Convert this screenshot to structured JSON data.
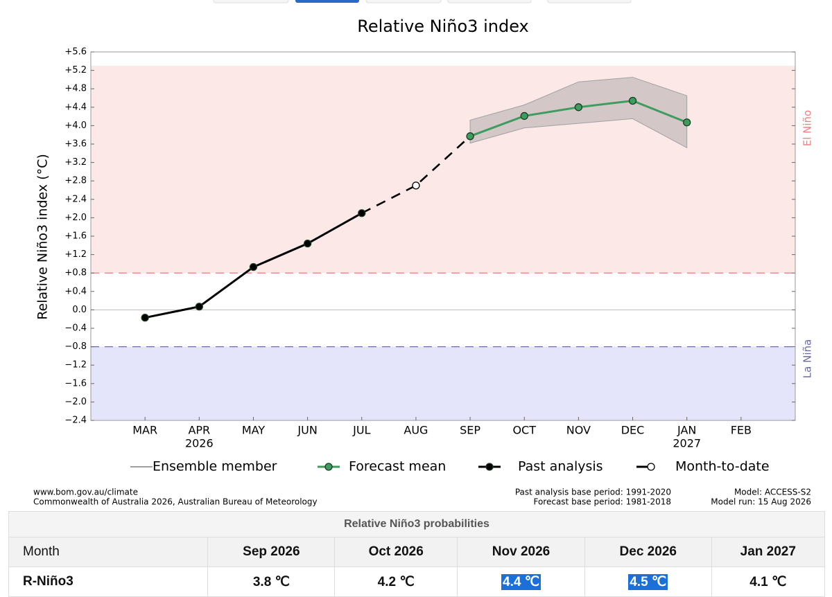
{
  "chart_data": {
    "type": "line",
    "title": "Relative Niño3 index",
    "y_label": "Relative Niño3 index (°C)",
    "categories": [
      "MAR",
      "APR",
      "MAY",
      "JUN",
      "JUL",
      "AUG",
      "SEP",
      "OCT",
      "NOV",
      "DEC",
      "JAN",
      "FEB"
    ],
    "year_labels": [
      null,
      "2026",
      null,
      null,
      null,
      null,
      null,
      null,
      null,
      null,
      "2027",
      null
    ],
    "ylim": [
      -2.4,
      5.6
    ],
    "yticks": [
      {
        "value": 5.6,
        "label": "+5.6"
      },
      {
        "value": 5.2,
        "label": "+5.2"
      },
      {
        "value": 4.8,
        "label": "+4.8"
      },
      {
        "value": 4.4,
        "label": "+4.4"
      },
      {
        "value": 4.0,
        "label": "+4.0"
      },
      {
        "value": 3.6,
        "label": "+3.6"
      },
      {
        "value": 3.2,
        "label": "+3.2"
      },
      {
        "value": 2.8,
        "label": "+2.8"
      },
      {
        "value": 2.4,
        "label": "+2.4"
      },
      {
        "value": 2.0,
        "label": "+2.0"
      },
      {
        "value": 1.6,
        "label": "+1.6"
      },
      {
        "value": 1.2,
        "label": "+1.2"
      },
      {
        "value": 0.8,
        "label": "+0.8"
      },
      {
        "value": 0.4,
        "label": "+0.4"
      },
      {
        "value": 0,
        "label": "0.0"
      },
      {
        "value": -0.4,
        "label": "−0.4"
      },
      {
        "value": -0.8,
        "label": "−0.8"
      },
      {
        "value": -1.2,
        "label": "−1.2"
      },
      {
        "value": -1.6,
        "label": "−1.6"
      },
      {
        "value": -2.0,
        "label": "−2.0"
      },
      {
        "value": -2.4,
        "label": "−2.4"
      }
    ],
    "regions": [
      {
        "name": "El Niño",
        "range": [
          0.8,
          5.3
        ],
        "color": "#fde8e8",
        "line_color": "#f08080"
      },
      {
        "name": "La Niña",
        "range": [
          -2.4,
          -0.8
        ],
        "color": "#e4e4fb",
        "line_color": "#6a6aa8"
      }
    ],
    "series": [
      {
        "name": "Ensemble member",
        "color": "#a0a0a0",
        "low": [
          null,
          null,
          null,
          null,
          null,
          null,
          3.62,
          3.95,
          4.05,
          4.15,
          3.52,
          null
        ],
        "high": [
          null,
          null,
          null,
          null,
          null,
          null,
          4.12,
          4.45,
          4.95,
          5.05,
          4.65,
          null
        ]
      },
      {
        "name": "Forecast mean",
        "color": "#3d9c5e",
        "marker": "filled",
        "values": [
          null,
          null,
          null,
          null,
          null,
          null,
          3.77,
          4.21,
          4.4,
          4.54,
          4.07,
          null
        ]
      },
      {
        "name": "Past analysis",
        "color": "#000000",
        "marker": "filled",
        "values": [
          -0.17,
          0.07,
          0.93,
          1.44,
          2.1,
          null,
          null,
          null,
          null,
          null,
          null,
          null
        ]
      },
      {
        "name": "Month-to-date",
        "color": "#000000",
        "marker": "open",
        "values": [
          null,
          null,
          null,
          null,
          null,
          2.7,
          null,
          null,
          null,
          null,
          null,
          null
        ]
      }
    ]
  },
  "footer": {
    "left": [
      "www.bom.gov.au/climate",
      "Commonwealth of Australia 2026, Australian Bureau of Meteorology"
    ],
    "middle": [
      "Past analysis base period: 1991-2020",
      "Forecast base period: 1981-2018"
    ],
    "right": [
      "Model: ACCESS-S2",
      "Model run: 15 Aug 2026"
    ]
  },
  "table": {
    "title": "Relative Niño3 probabilities",
    "header": [
      "Month",
      "Sep 2026",
      "Oct 2026",
      "Nov 2026",
      "Dec 2026",
      "Jan 2027"
    ],
    "rows": [
      [
        "R-Niño3",
        "3.8 ℃",
        "4.2 ℃",
        "4.4 ℃",
        "4.5 ℃",
        "4.1 ℃"
      ]
    ],
    "highlighted_columns": [
      3,
      4
    ]
  }
}
